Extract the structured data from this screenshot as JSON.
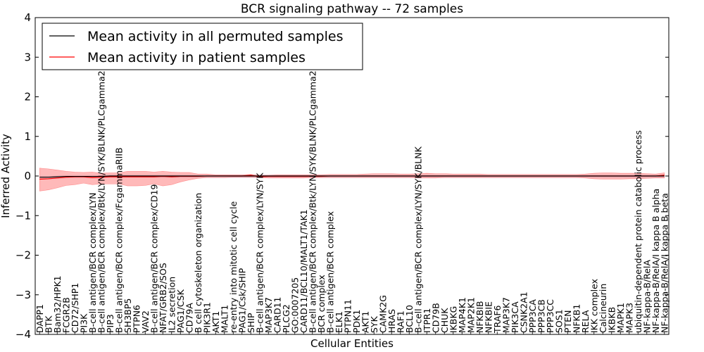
{
  "chart_data": {
    "type": "line",
    "title": "BCR signaling pathway -- 72 samples",
    "xlabel": "Cellular Entities",
    "ylabel": "Inferred Activity",
    "ylim": [
      -4,
      4
    ],
    "yticks": [
      -4,
      -3,
      -2,
      -1,
      0,
      1,
      2,
      3,
      4
    ],
    "ytick_labels": [
      "−4",
      "−3",
      "−2",
      "−1",
      "0",
      "1",
      "2",
      "3",
      "4"
    ],
    "legend_position": "top-left",
    "colors": {
      "permuted": "#000000",
      "patient": "#ff0000",
      "band": "#ff8080",
      "permuted_band": "#c8c8e0"
    },
    "categories": [
      "DAPP1",
      "BTK",
      "Bam32/HPK1",
      "FCGR2B",
      "CD72/SHP1",
      "PI3K",
      "B-cell antigen/BCR complex/LYN",
      "B-cell antigen/BCR complex/Btk/LYN/SYK/BLNK/PLCgamma2",
      "PIP3",
      "B-cell antigen/BCR complex/FcgammaRIIB",
      "SH3BP5",
      "PTPN6",
      "VAV2",
      "B-cell antigen/BCR complex/CD19",
      "NFAT/GRB2/SOS",
      "IL2 secretion",
      "PAG1/CSK",
      "CD79A",
      "B cell cytoskeleton organization",
      "PIK3R1",
      "AKT1",
      "MALT1",
      "re-entry into mitotic cell cycle",
      "PAG1/Csk/SHIP",
      "SHIP",
      "B-cell antigen/BCR complex/LYN/SYK",
      "MAP3K7",
      "CARD11",
      "PLCG2",
      "GO:0007205",
      "CARD11/BCL10/MALT1/TAK1",
      "B-cell antigen/BCR complex/Btk/LYN/SYK/BLNK/PLCgamma2",
      "BCR complex",
      "B-cell antigen/BCR complex",
      "ELK1",
      "PTPN11",
      "PDK1",
      "AKT1",
      "SYK",
      "CAMK2G",
      "HRAS",
      "RAF1",
      "BCL10",
      "B-cell antigen/BCR complex/LYN/SYK/BLNK",
      "ITPR1",
      "CD79B",
      "CHUK",
      "IKBKG",
      "MAP4K1",
      "MAP2K1",
      "NFKBIB",
      "NFKBIE",
      "TRAF6",
      "MAP3K7",
      "PIK3CA",
      "CSNK2A1",
      "PPP3CA",
      "PPP3CB",
      "PPP3CC",
      "SOS1",
      "PTEN",
      "NFKB1",
      "RELA",
      "IKK complex",
      "Calcineurin",
      "IKBKB",
      "MAPK1",
      "MAPK3",
      "ubiquitin-dependent protein catabolic process",
      "NF-kappa-B/RelA",
      "NF-kappa-B/RelA/I kappa B alpha",
      "NF-kappa-B/RelA/I kappa B beta"
    ],
    "series": [
      {
        "name": "Mean activity in all permuted samples",
        "color": "#000000",
        "values": [
          -0.03,
          -0.03,
          -0.02,
          -0.01,
          -0.01,
          -0.01,
          -0.01,
          -0.01,
          0.0,
          0.0,
          0.0,
          0.0,
          0.0,
          0.0,
          0.0,
          0.0,
          0.0,
          0.0,
          0.0,
          0.0,
          0.0,
          0.0,
          0.0,
          0.0,
          0.0,
          0.0,
          0.0,
          0.0,
          0.0,
          0.0,
          0.0,
          0.0,
          0.0,
          0.0,
          0.0,
          0.0,
          0.0,
          0.0,
          0.0,
          0.0,
          0.0,
          0.0,
          0.0,
          0.0,
          0.0,
          0.0,
          0.0,
          0.0,
          0.0,
          0.0,
          0.0,
          0.0,
          0.0,
          0.0,
          0.0,
          0.0,
          0.0,
          0.0,
          0.0,
          0.0,
          0.0,
          0.0,
          0.0,
          0.0,
          0.0,
          0.0,
          0.0,
          0.0,
          0.0,
          0.0,
          0.0,
          0.0
        ]
      },
      {
        "name": "Mean activity in patient samples",
        "color": "#ff0000",
        "values": [
          -0.08,
          -0.07,
          -0.05,
          -0.03,
          -0.02,
          -0.02,
          -0.04,
          -0.03,
          -0.02,
          -0.02,
          -0.02,
          -0.02,
          -0.02,
          -0.02,
          -0.01,
          -0.02,
          -0.01,
          -0.01,
          -0.01,
          0.0,
          0.0,
          0.0,
          0.0,
          0.0,
          0.02,
          -0.02,
          -0.01,
          -0.01,
          -0.01,
          -0.01,
          -0.01,
          -0.01,
          -0.01,
          0.0,
          0.0,
          0.0,
          0.0,
          0.0,
          0.0,
          0.0,
          0.0,
          0.0,
          0.0,
          0.0,
          0.0,
          0.0,
          0.0,
          0.0,
          0.0,
          0.0,
          0.0,
          0.0,
          0.0,
          0.0,
          0.0,
          0.0,
          0.0,
          0.0,
          0.0,
          0.0,
          0.0,
          0.0,
          0.0,
          0.0,
          0.0,
          0.0,
          0.0,
          0.0,
          0.0,
          0.0,
          0.0,
          0.02
        ],
        "band_upper": [
          0.2,
          0.18,
          0.15,
          0.12,
          0.1,
          0.09,
          0.1,
          0.07,
          0.08,
          0.08,
          0.12,
          0.12,
          0.12,
          0.1,
          0.12,
          0.1,
          0.09,
          0.09,
          0.05,
          0.05,
          0.03,
          0.03,
          0.03,
          0.03,
          0.04,
          0.02,
          0.02,
          0.03,
          0.03,
          0.03,
          0.03,
          0.03,
          0.03,
          0.04,
          0.04,
          0.04,
          0.04,
          0.05,
          0.06,
          0.06,
          0.06,
          0.05,
          0.05,
          0.06,
          0.07,
          0.06,
          0.06,
          0.05,
          0.05,
          0.05,
          0.05,
          0.04,
          0.04,
          0.04,
          0.04,
          0.04,
          0.04,
          0.04,
          0.04,
          0.04,
          0.04,
          0.04,
          0.05,
          0.07,
          0.08,
          0.08,
          0.07,
          0.07,
          0.07,
          0.06,
          0.05,
          0.08
        ],
        "band_lower": [
          -0.38,
          -0.35,
          -0.3,
          -0.24,
          -0.22,
          -0.18,
          -0.22,
          -0.2,
          -0.2,
          -0.2,
          -0.25,
          -0.25,
          -0.24,
          -0.2,
          -0.25,
          -0.22,
          -0.15,
          -0.1,
          -0.06,
          -0.04,
          -0.04,
          -0.04,
          -0.03,
          -0.03,
          -0.03,
          -0.04,
          -0.05,
          -0.05,
          -0.05,
          -0.05,
          -0.05,
          -0.04,
          -0.04,
          -0.04,
          -0.04,
          -0.04,
          -0.04,
          -0.04,
          -0.04,
          -0.04,
          -0.04,
          -0.04,
          -0.04,
          -0.05,
          -0.05,
          -0.05,
          -0.04,
          -0.04,
          -0.04,
          -0.04,
          -0.04,
          -0.04,
          -0.04,
          -0.04,
          -0.04,
          -0.04,
          -0.04,
          -0.04,
          -0.04,
          -0.04,
          -0.04,
          -0.04,
          -0.05,
          -0.07,
          -0.08,
          -0.08,
          -0.08,
          -0.07,
          -0.07,
          -0.06,
          -0.05,
          -0.05
        ]
      }
    ]
  }
}
